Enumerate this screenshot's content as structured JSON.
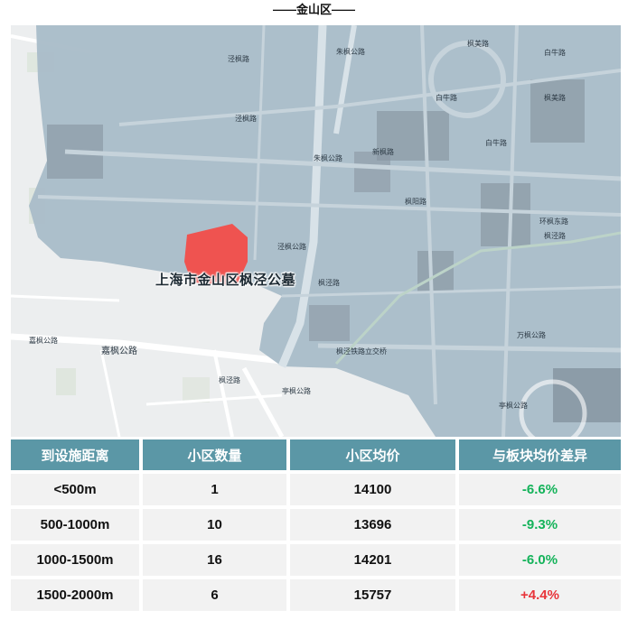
{
  "header": {
    "title": "——金山区——"
  },
  "map": {
    "highlight_label": "上海市金山区枫泾公墓",
    "highlight_color": "#ef5350",
    "road_labels": [
      "嘉枫公路",
      "嘉枫公路",
      "朱枫公路",
      "朱枫公路",
      "枫美路",
      "白牛路",
      "枫阳路",
      "环枫东路",
      "万枫公路",
      "亭枫公路",
      "亭枫公路",
      "枫泾铁路立交桥",
      "枫泾路",
      "白牛路",
      "泾枫路",
      "泾枫路",
      "新枫路",
      "枫泾路",
      "泾枫公路",
      "白牛路",
      "枫美路",
      "枫泾路"
    ]
  },
  "table": {
    "headers": [
      "到设施距离",
      "小区数量",
      "小区均价",
      "与板块均价差异"
    ],
    "rows": [
      {
        "distance": "<500m",
        "count": "1",
        "price": "14100",
        "diff": "-6.6%",
        "trend": "neg"
      },
      {
        "distance": "500-1000m",
        "count": "10",
        "price": "13696",
        "diff": "-9.3%",
        "trend": "neg"
      },
      {
        "distance": "1000-1500m",
        "count": "16",
        "price": "14201",
        "diff": "-6.0%",
        "trend": "neg"
      },
      {
        "distance": "1500-2000m",
        "count": "6",
        "price": "15757",
        "diff": "+4.4%",
        "trend": "pos"
      }
    ]
  },
  "colors": {
    "header_bg": "#5b97a6",
    "row_bg": "#f2f2f2",
    "negative": "#14b35a",
    "positive": "#e8343a",
    "overlay": "#a9bcc8"
  }
}
